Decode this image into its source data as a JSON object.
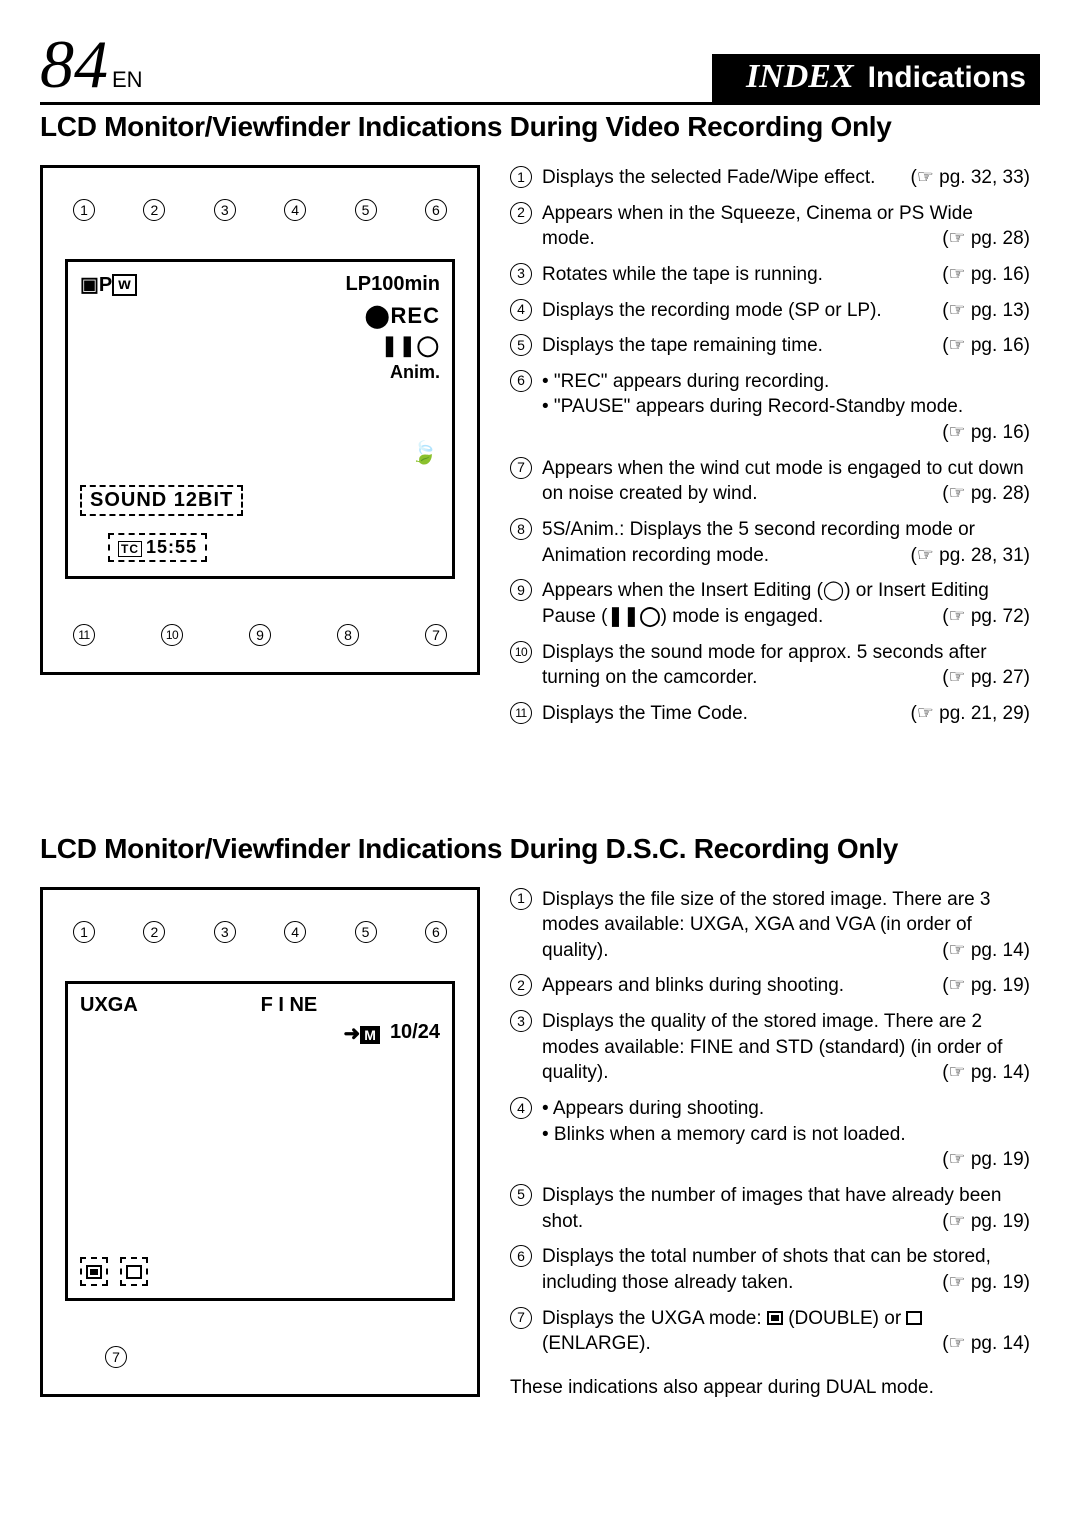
{
  "header": {
    "page_number": "84",
    "lang": "EN",
    "title_main": "INDEX",
    "title_sub": "Indications"
  },
  "section1": {
    "heading": "LCD Monitor/Viewfinder Indications During Video Recording Only",
    "diagram": {
      "top_nums": [
        "1",
        "2",
        "3",
        "4",
        "5",
        "6"
      ],
      "bot_nums": [
        "11",
        "10",
        "9",
        "8",
        "7"
      ],
      "lp_text": "LP100min",
      "rec": "REC",
      "pause_icon": "❚❚◯",
      "anim": "Anim.",
      "sound": "SOUND 12BIT",
      "timecode_prefix": "TC",
      "timecode": "15:55"
    },
    "items": [
      {
        "n": "1",
        "text": "Displays the selected Fade/Wipe effect.",
        "ref": "pg. 32, 33"
      },
      {
        "n": "2",
        "text": "Appears when in the Squeeze, Cinema or PS Wide mode.",
        "ref": "pg. 28"
      },
      {
        "n": "3",
        "text": "Rotates while the tape is running.",
        "ref": "pg. 16"
      },
      {
        "n": "4",
        "text": "Displays the recording mode (SP or LP).",
        "ref": "pg. 13"
      },
      {
        "n": "5",
        "text": "Displays the tape remaining time.",
        "ref": "pg. 16"
      },
      {
        "n": "6",
        "bullets": [
          "\"REC\" appears during recording.",
          "\"PAUSE\" appears during Record-Standby mode."
        ],
        "ref": "pg. 16"
      },
      {
        "n": "7",
        "text": "Appears when the wind cut mode is engaged to cut down on noise created by wind.",
        "ref": "pg. 28"
      },
      {
        "n": "8",
        "text": "5S/Anim.: Displays the 5 second recording mode or Animation recording mode.",
        "ref": "pg. 28, 31"
      },
      {
        "n": "9",
        "text_html": "Appears when the Insert Editing (◯) or Insert Editing Pause (<b>❚❚◯</b>) mode is engaged.",
        "ref": "pg. 72"
      },
      {
        "n": "10",
        "text": "Displays the sound mode for approx. 5 seconds after turning on the camcorder.",
        "ref": "pg. 27"
      },
      {
        "n": "11",
        "text": "Displays the Time Code.",
        "ref": "pg. 21, 29"
      }
    ]
  },
  "section2": {
    "heading": "LCD Monitor/Viewfinder Indications During D.S.C. Recording Only",
    "diagram": {
      "top_nums": [
        "1",
        "2",
        "3",
        "4",
        "5",
        "6"
      ],
      "bot_nums": [
        "7"
      ],
      "uxga": "UXGA",
      "fine": "F I NE",
      "count": "10/24"
    },
    "items": [
      {
        "n": "1",
        "text": "Displays the file size of the stored image. There are 3 modes available: UXGA, XGA and VGA (in order of quality).",
        "ref": "pg. 14"
      },
      {
        "n": "2",
        "text": "Appears and blinks during shooting.",
        "ref": "pg. 19"
      },
      {
        "n": "3",
        "text": "Displays the quality of the stored image. There are 2 modes available: FINE and STD (standard) (in order of quality).",
        "ref": "pg. 14"
      },
      {
        "n": "4",
        "bullets": [
          "Appears during shooting.",
          "Blinks when a memory card is not loaded."
        ],
        "ref": "pg. 19"
      },
      {
        "n": "5",
        "text": "Displays the number of images that have already been shot.",
        "ref": "pg. 19"
      },
      {
        "n": "6",
        "text": "Displays the total number of shots that can be stored, including those already taken.",
        "ref": "pg. 19"
      },
      {
        "n": "7",
        "text_html": "Displays the UXGA mode: <span class='icon-sq fill'></span> (DOUBLE) or <span class='icon-sq'></span> (ENLARGE).",
        "ref": "pg. 14"
      }
    ],
    "footnote": "These indications also appear during DUAL mode."
  },
  "ref_prefix": "(☞ ",
  "ref_suffix": ")"
}
